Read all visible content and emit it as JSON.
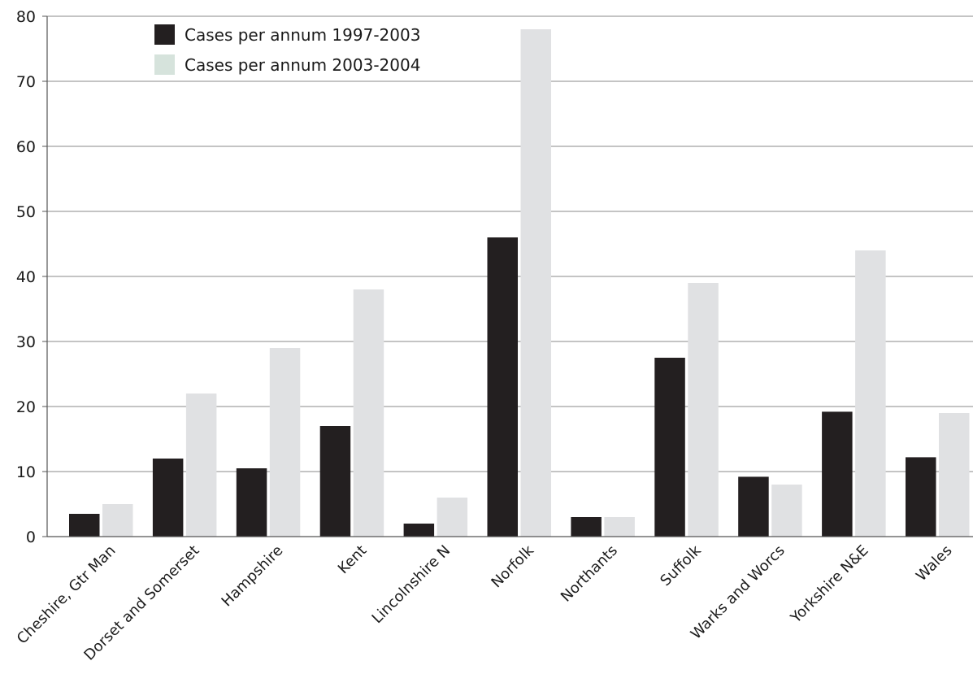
{
  "chart_data": {
    "type": "bar",
    "title": "",
    "xlabel": "",
    "ylabel": "",
    "ylim": [
      0,
      80
    ],
    "yticks": [
      0,
      10,
      20,
      30,
      40,
      50,
      60,
      70,
      80
    ],
    "grid": "horizontal",
    "legend_position": "top-left",
    "categories": [
      "Cheshire, Gtr Man",
      "Dorset and Somerset",
      "Hampshire",
      "Kent",
      "Lincolnshire N",
      "Norfolk",
      "Northants",
      "Suffolk",
      "Warks and Worcs",
      "Yorkshire N&E",
      "Wales"
    ],
    "series": [
      {
        "name": "Cases per annum 1997-2003",
        "color": "#231f20",
        "values": [
          3.5,
          12,
          10.5,
          17,
          2,
          46,
          3,
          27.5,
          9.2,
          19.2,
          12.2
        ]
      },
      {
        "name": "Cases per annum 2003-2004",
        "color": "#e0e1e3",
        "legend_swatch_color": "#d6e3dc",
        "values": [
          5,
          22,
          29,
          38,
          6,
          78,
          3,
          39,
          8,
          44,
          19
        ]
      }
    ]
  }
}
